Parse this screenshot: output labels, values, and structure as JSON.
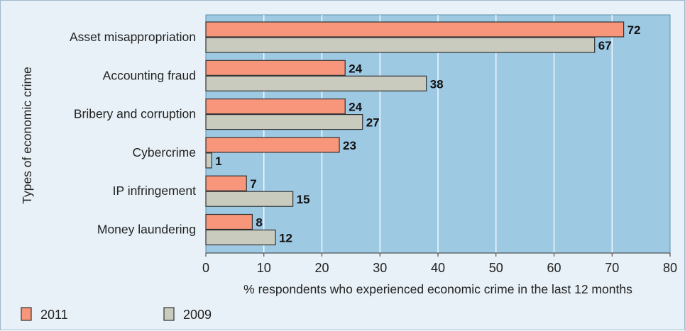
{
  "chart_data": {
    "type": "bar",
    "orientation": "horizontal",
    "categories": [
      "Asset misappropriation",
      "Accounting fraud",
      "Bribery and corruption",
      "Cybercrime",
      "IP infringement",
      "Money laundering"
    ],
    "series": [
      {
        "name": "2011",
        "values": [
          72,
          24,
          24,
          23,
          7,
          8
        ],
        "color": "#f7967a"
      },
      {
        "name": "2009",
        "values": [
          67,
          38,
          27,
          1,
          15,
          12
        ],
        "color": "#c9cbbf"
      }
    ],
    "xlabel": "% respondents who experienced economic crime in the last 12 months",
    "ylabel": "Types of economic crime",
    "xlim": [
      0,
      80
    ],
    "xticks": [
      0,
      10,
      20,
      30,
      40,
      50,
      60,
      70,
      80
    ],
    "grid": true,
    "legend_position": "bottom-left",
    "plot_background": "#9ec9e3",
    "frame_background": "#e8f1f7"
  }
}
